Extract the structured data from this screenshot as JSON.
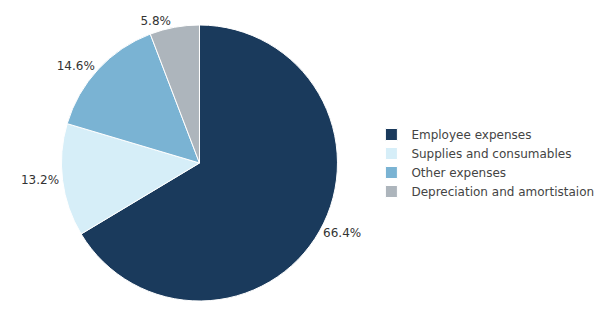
{
  "chart_data": {
    "type": "pie",
    "categories": [
      "Employee expenses",
      "Supplies and consumables",
      "Other expenses",
      "Depreciation and amortistaion"
    ],
    "values": [
      66.4,
      13.2,
      14.6,
      5.8
    ],
    "value_labels": [
      "66.4%",
      "13.2%",
      "14.6%",
      "5.8%"
    ],
    "colors": [
      "#1a3a5c",
      "#d6eef8",
      "#7ab3d3",
      "#adb5bc"
    ],
    "data_labels": true,
    "legend": "right"
  }
}
